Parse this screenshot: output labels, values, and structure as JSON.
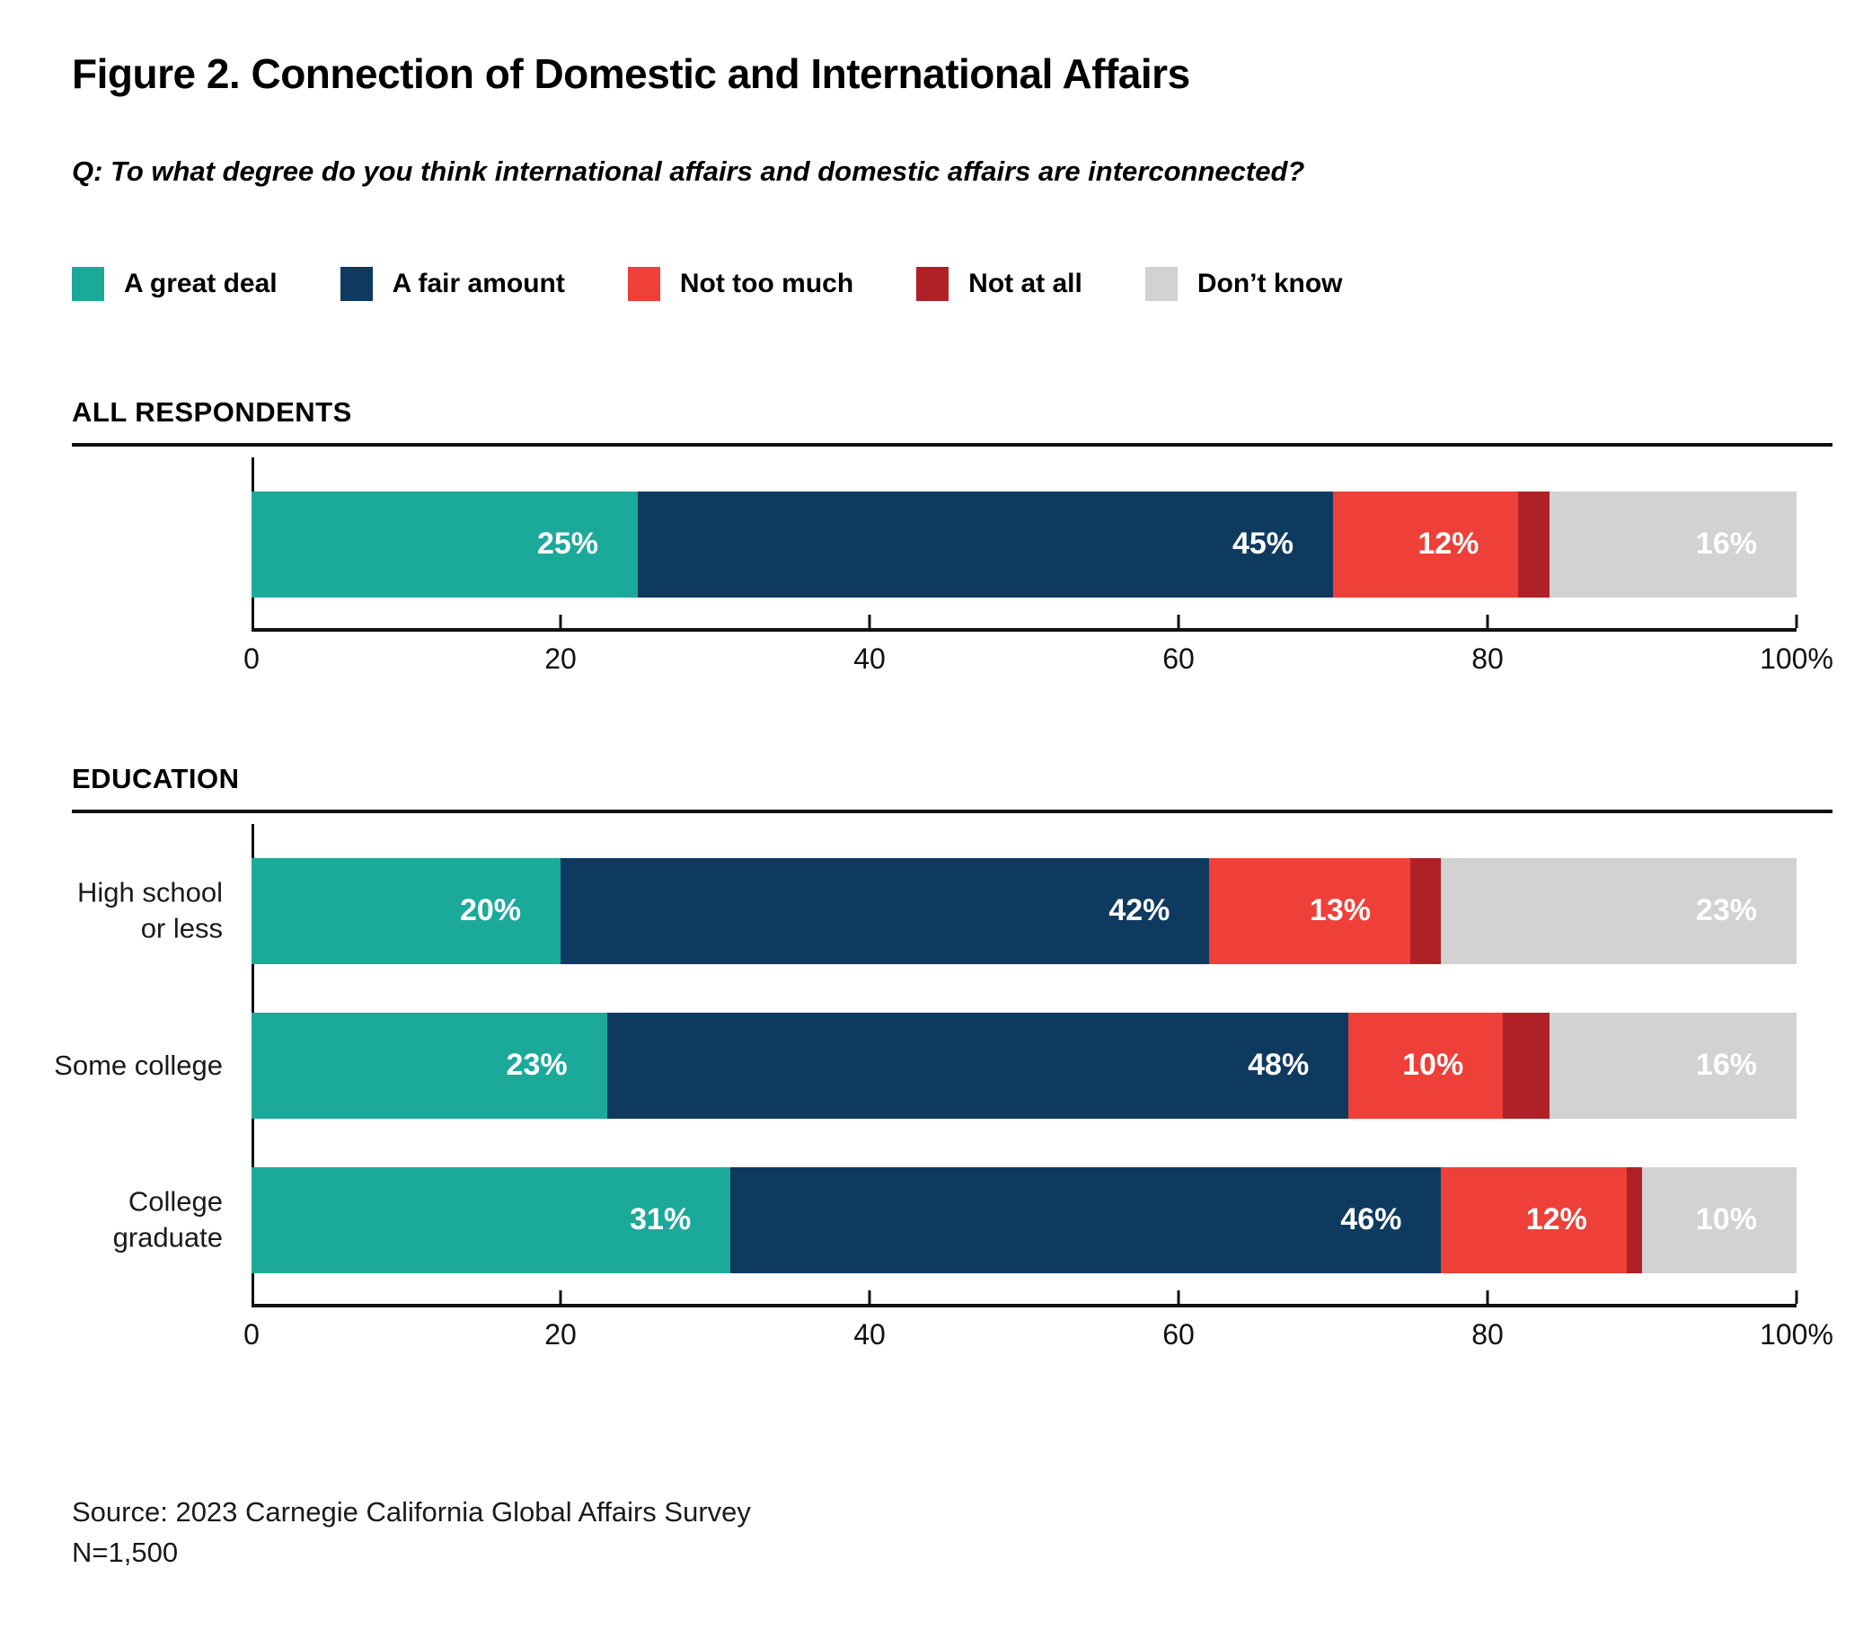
{
  "figure": {
    "title": "Figure 2. Connection of Domestic and International Affairs",
    "question": "Q: To what degree do you think international affairs and domestic affairs are interconnected?",
    "source_line1": "Source: 2023 Carnegie California Global Affairs Survey",
    "source_line2": "N=1,500"
  },
  "legend": {
    "items": [
      {
        "label": "A great deal",
        "color": "#1BA99A"
      },
      {
        "label": "A fair amount",
        "color": "#0E3A60"
      },
      {
        "label": "Not too much",
        "color": "#EE3F38"
      },
      {
        "label": "Not at all",
        "color": "#AF2127"
      },
      {
        "label": "Don’t know",
        "color": "#D2D2D2"
      }
    ]
  },
  "chart_data": [
    {
      "type": "bar",
      "orientation": "horizontal",
      "stacked": true,
      "section": "ALL RESPONDENTS",
      "series_names": [
        "A great deal",
        "A fair amount",
        "Not too much",
        "Not at all",
        "Don’t know"
      ],
      "xlim": [
        0,
        100
      ],
      "x_ticks": [
        {
          "value": 0,
          "label": "0"
        },
        {
          "value": 20,
          "label": "20"
        },
        {
          "value": 40,
          "label": "40"
        },
        {
          "value": 60,
          "label": "60"
        },
        {
          "value": 80,
          "label": "80"
        },
        {
          "value": 100,
          "label": "100%"
        }
      ],
      "rows": [
        {
          "label": "",
          "values": [
            25,
            45,
            12,
            2,
            16
          ],
          "value_labels": [
            "25%",
            "45%",
            "12%",
            "",
            "16%"
          ]
        }
      ]
    },
    {
      "type": "bar",
      "orientation": "horizontal",
      "stacked": true,
      "section": "EDUCATION",
      "series_names": [
        "A great deal",
        "A fair amount",
        "Not too much",
        "Not at all",
        "Don’t know"
      ],
      "xlim": [
        0,
        100
      ],
      "x_ticks": [
        {
          "value": 0,
          "label": "0"
        },
        {
          "value": 20,
          "label": "20"
        },
        {
          "value": 40,
          "label": "40"
        },
        {
          "value": 60,
          "label": "60"
        },
        {
          "value": 80,
          "label": "80"
        },
        {
          "value": 100,
          "label": "100%"
        }
      ],
      "rows": [
        {
          "label": "High school\nor less",
          "values": [
            20,
            42,
            13,
            2,
            23
          ],
          "value_labels": [
            "20%",
            "42%",
            "13%",
            "",
            "23%"
          ]
        },
        {
          "label": "Some college",
          "values": [
            23,
            48,
            10,
            3,
            16
          ],
          "value_labels": [
            "23%",
            "48%",
            "10%",
            "",
            "16%"
          ]
        },
        {
          "label": "College\ngraduate",
          "values": [
            31,
            46,
            12,
            1,
            10
          ],
          "value_labels": [
            "31%",
            "46%",
            "12%",
            "",
            "10%"
          ]
        }
      ]
    }
  ]
}
